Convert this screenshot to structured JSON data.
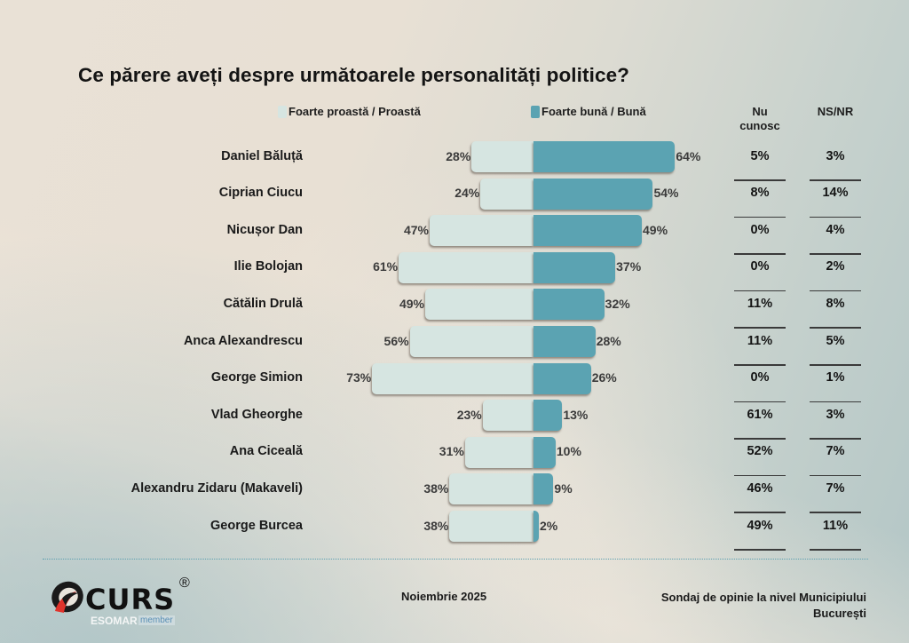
{
  "title": "Ce părere aveți despre următoarele personalități politice?",
  "legend": {
    "negative": {
      "label": "Foarte proastă / Proastă",
      "color": "#d6e5e1"
    },
    "positive": {
      "label": "Foarte bună / Bună",
      "color": "#5ba3b2"
    }
  },
  "columns": {
    "nu_cunosc": "Nu cunosc",
    "nu_cunosc_line1": "Nu",
    "nu_cunosc_line2": "cunosc",
    "ns_nr": "NS/NR"
  },
  "chart_data": {
    "type": "bar",
    "subtype": "diverging-horizontal",
    "title": "Ce părere aveți despre următoarele personalități politice?",
    "categories": [
      "Daniel Băluță",
      "Ciprian Ciucu",
      "Nicușor Dan",
      "Ilie Bolojan",
      "Cătălin Drulă",
      "Anca Alexandrescu",
      "George Simion",
      "Vlad Gheorghe",
      "Ana Ciceală",
      "Alexandru Zidaru (Makaveli)",
      "George Burcea"
    ],
    "series": [
      {
        "name": "Foarte proastă / Proastă",
        "values": [
          28,
          24,
          47,
          61,
          49,
          56,
          73,
          23,
          31,
          38,
          38
        ]
      },
      {
        "name": "Foarte bună / Bună",
        "values": [
          64,
          54,
          49,
          37,
          32,
          28,
          26,
          13,
          10,
          9,
          2
        ]
      },
      {
        "name": "Nu cunosc",
        "values": [
          5,
          8,
          0,
          0,
          11,
          11,
          0,
          61,
          52,
          46,
          49
        ]
      },
      {
        "name": "NS/NR",
        "values": [
          3,
          14,
          4,
          2,
          8,
          5,
          1,
          3,
          7,
          7,
          11
        ]
      }
    ],
    "unit": "%",
    "legend": "top",
    "grid": false
  },
  "footer": {
    "brand": "CURS",
    "registered": "®",
    "esomar": "ESOMAR",
    "member": "member",
    "date": "Noiembrie 2025",
    "source_line1": "Sondaj de opinie la nivel Municipiului",
    "source_line2": "București"
  }
}
